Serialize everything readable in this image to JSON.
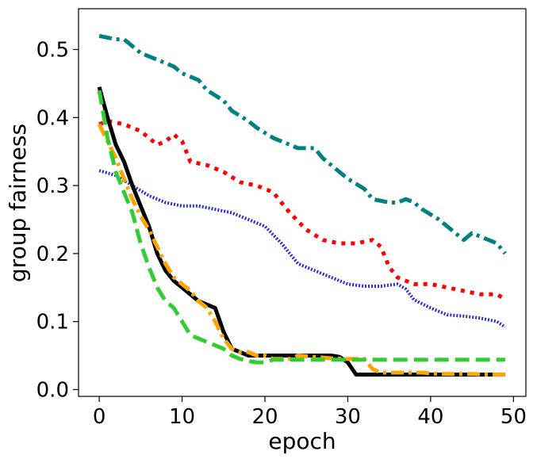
{
  "chart_data": {
    "type": "line",
    "xlabel": "epoch",
    "ylabel": "group fairness",
    "xlim": [
      -2.5,
      51.5
    ],
    "ylim": [
      -0.01,
      0.56
    ],
    "xticks": [
      0,
      10,
      20,
      30,
      40,
      50
    ],
    "yticks": [
      0.0,
      0.1,
      0.2,
      0.3,
      0.4,
      0.5
    ],
    "xtick_labels": [
      "0",
      "10",
      "20",
      "30",
      "40",
      "50"
    ],
    "ytick_labels": [
      "0.0",
      "0.1",
      "0.2",
      "0.3",
      "0.4",
      "0.5"
    ],
    "grid": false,
    "legend": "none",
    "series": [
      {
        "color": "#008080",
        "dash": "dashdot",
        "x": [
          0,
          2,
          3,
          4,
          5,
          7,
          9,
          10,
          12,
          13,
          15,
          16,
          18,
          19,
          21,
          22,
          24,
          26,
          27,
          29,
          30,
          32,
          33,
          35,
          36,
          37,
          38,
          39,
          41,
          43,
          44,
          45,
          46,
          47,
          48,
          49
        ],
        "y": [
          0.52,
          0.515,
          0.515,
          0.505,
          0.495,
          0.485,
          0.475,
          0.465,
          0.455,
          0.44,
          0.425,
          0.41,
          0.395,
          0.385,
          0.37,
          0.365,
          0.355,
          0.355,
          0.34,
          0.32,
          0.31,
          0.295,
          0.28,
          0.275,
          0.275,
          0.28,
          0.275,
          0.265,
          0.25,
          0.23,
          0.22,
          0.23,
          0.225,
          0.22,
          0.215,
          0.2
        ]
      },
      {
        "color": "#ff0000",
        "dash": "dotted",
        "x": [
          0,
          1,
          3,
          5,
          6,
          7,
          8,
          9,
          10,
          11,
          13,
          15,
          17,
          19,
          21,
          23,
          25,
          27,
          29,
          31,
          33,
          34,
          35,
          36,
          37,
          38,
          40,
          42,
          44,
          46,
          48,
          49
        ],
        "y": [
          0.39,
          0.395,
          0.39,
          0.38,
          0.37,
          0.36,
          0.365,
          0.375,
          0.365,
          0.335,
          0.33,
          0.32,
          0.305,
          0.3,
          0.29,
          0.26,
          0.235,
          0.22,
          0.215,
          0.215,
          0.22,
          0.21,
          0.18,
          0.165,
          0.16,
          0.155,
          0.155,
          0.15,
          0.145,
          0.14,
          0.14,
          0.133
        ]
      },
      {
        "color": "#2a2ae0",
        "dash": "fine",
        "x": [
          0,
          2,
          4,
          6,
          8,
          10,
          12,
          14,
          16,
          18,
          20,
          22,
          24,
          26,
          28,
          30,
          32,
          34,
          36,
          37,
          38,
          40,
          42,
          44,
          46,
          48,
          49
        ],
        "y": [
          0.322,
          0.315,
          0.3,
          0.285,
          0.275,
          0.27,
          0.27,
          0.265,
          0.26,
          0.25,
          0.24,
          0.215,
          0.185,
          0.175,
          0.165,
          0.155,
          0.152,
          0.152,
          0.155,
          0.148,
          0.132,
          0.12,
          0.11,
          0.108,
          0.105,
          0.1,
          0.092
        ]
      },
      {
        "color": "#000000",
        "dash": "solid",
        "x": [
          0,
          1,
          2,
          3,
          4,
          5,
          6,
          7,
          8,
          9,
          10,
          11,
          12,
          13,
          14,
          15,
          16,
          17,
          18,
          19,
          20,
          21,
          22,
          24,
          26,
          28,
          29,
          30,
          31,
          33,
          35,
          37,
          39,
          41,
          43,
          45,
          47,
          49
        ],
        "y": [
          0.445,
          0.4,
          0.36,
          0.335,
          0.3,
          0.27,
          0.24,
          0.2,
          0.175,
          0.16,
          0.15,
          0.14,
          0.13,
          0.125,
          0.12,
          0.085,
          0.06,
          0.055,
          0.05,
          0.05,
          0.05,
          0.05,
          0.05,
          0.05,
          0.05,
          0.05,
          0.048,
          0.04,
          0.022,
          0.022,
          0.022,
          0.022,
          0.022,
          0.022,
          0.022,
          0.022,
          0.022,
          0.022
        ]
      },
      {
        "color": "#ffa500",
        "dash": "dashdot",
        "x": [
          0,
          1,
          2,
          3,
          4,
          5,
          6,
          7,
          8,
          9,
          10,
          11,
          12,
          13,
          14,
          15,
          16,
          17,
          18,
          19,
          20,
          21,
          22,
          23,
          24,
          26,
          28,
          30,
          32,
          33,
          34,
          35,
          37,
          39,
          41,
          43,
          45,
          47,
          49
        ],
        "y": [
          0.39,
          0.365,
          0.34,
          0.31,
          0.28,
          0.255,
          0.235,
          0.21,
          0.185,
          0.165,
          0.155,
          0.145,
          0.13,
          0.12,
          0.1,
          0.075,
          0.06,
          0.055,
          0.055,
          0.05,
          0.05,
          0.045,
          0.045,
          0.045,
          0.05,
          0.048,
          0.046,
          0.045,
          0.045,
          0.03,
          0.025,
          0.025,
          0.025,
          0.025,
          0.023,
          0.023,
          0.023,
          0.022,
          0.022
        ]
      },
      {
        "color": "#32cd32",
        "dash": "dashed",
        "x": [
          0,
          1,
          2,
          3,
          4,
          5,
          6,
          7,
          8,
          9,
          10,
          11,
          12,
          13,
          14,
          15,
          16,
          17,
          18,
          19,
          20,
          21,
          22,
          24,
          26,
          28,
          30,
          32,
          34,
          36,
          38,
          40,
          42,
          44,
          46,
          48,
          49
        ],
        "y": [
          0.44,
          0.37,
          0.32,
          0.29,
          0.26,
          0.215,
          0.18,
          0.15,
          0.13,
          0.12,
          0.1,
          0.08,
          0.075,
          0.07,
          0.065,
          0.06,
          0.05,
          0.045,
          0.042,
          0.04,
          0.04,
          0.044,
          0.044,
          0.044,
          0.044,
          0.044,
          0.044,
          0.044,
          0.044,
          0.044,
          0.044,
          0.044,
          0.044,
          0.044,
          0.044,
          0.044,
          0.044
        ]
      }
    ]
  }
}
